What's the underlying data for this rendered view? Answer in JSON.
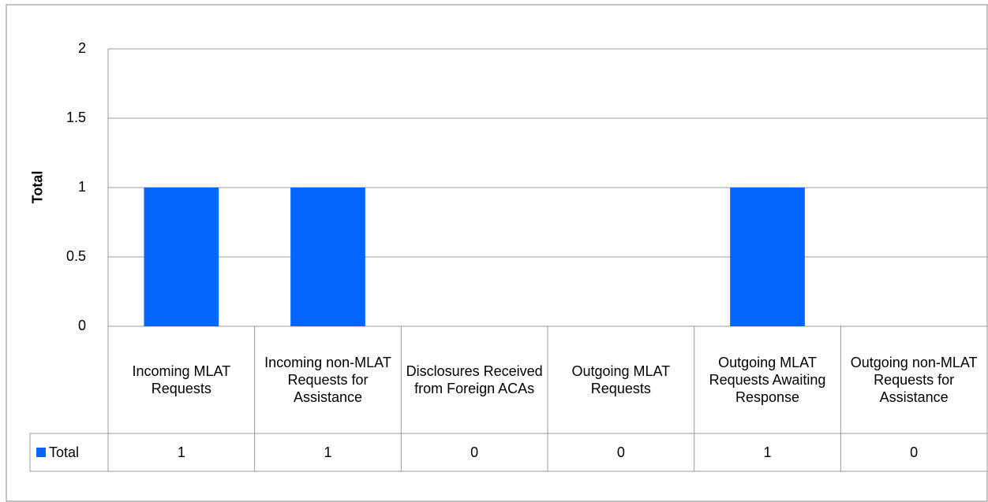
{
  "chart_data": {
    "type": "bar",
    "y_label": "Total",
    "categories": [
      "Incoming MLAT Requests",
      "Incoming non-MLAT Requests for Assistance",
      "Disclosures Received from Foreign ACAs",
      "Outgoing MLAT Requests",
      "Outgoing MLAT Requests Awaiting Response",
      "Outgoing non-MLAT Requests for Assistance"
    ],
    "series": [
      {
        "name": "Total",
        "color": "#0566ff",
        "values": [
          1,
          1,
          0,
          0,
          1,
          0
        ]
      }
    ],
    "ylim": [
      0,
      2
    ],
    "yticks": [
      0,
      0.5,
      1,
      1.5,
      2
    ],
    "grid": true,
    "data_table": true
  }
}
